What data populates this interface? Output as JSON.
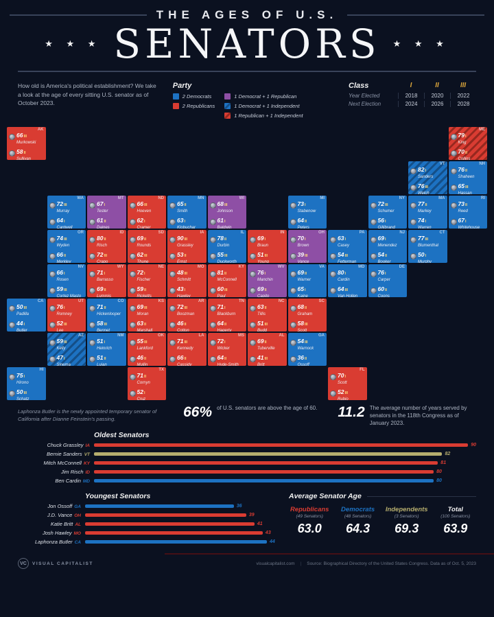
{
  "colors": {
    "background": "#0b1120",
    "democrat": "#1d72c2",
    "republican": "#d93c32",
    "mixed": "#8e4fa5",
    "independent": "#b5ad6e",
    "class_gold": "#ffd97a"
  },
  "header": {
    "kicker": "THE AGES OF U.S.",
    "title": "SENATORS",
    "stars": "★ ★ ★"
  },
  "intro": {
    "text": "How old is America's political establishment? We take a look at the age of every sitting U.S. senator as of October 2023."
  },
  "legend": {
    "title": "Party",
    "columns": [
      [
        {
          "label": "2 Democrats",
          "type": "dem"
        },
        {
          "label": "2 Republicans",
          "type": "rep"
        }
      ],
      [
        {
          "label": "1 Democrat + 1 Republican",
          "type": "mix"
        },
        {
          "label": "1 Democrat + 1 Independent",
          "type": "demind"
        },
        {
          "label": "1 Republican + 1 Independent",
          "type": "repind"
        }
      ]
    ]
  },
  "class_table": {
    "title": "Class",
    "columns": [
      "I",
      "II",
      "III"
    ],
    "rows": [
      {
        "label": "Year Elected",
        "values": [
          "2018",
          "2020",
          "2022"
        ]
      },
      {
        "label": "Next Election",
        "values": [
          "2024",
          "2026",
          "2028"
        ]
      }
    ]
  },
  "map": {
    "annotation": "Laphonza Butler is the newly appointed temporary senator of California after Dianne Feinstein's passing.",
    "states": [
      {
        "abbr": "WA",
        "party": "dem",
        "senators": [
          {
            "age": 72,
            "cls": "III",
            "name": "Murray"
          },
          {
            "age": 64,
            "cls": "I",
            "name": "Cantwell"
          }
        ]
      },
      {
        "abbr": "OR",
        "party": "dem",
        "senators": [
          {
            "age": 74,
            "cls": "III",
            "name": "Wyden"
          },
          {
            "age": 66,
            "cls": "II",
            "name": "Merkley"
          }
        ]
      },
      {
        "abbr": "CA",
        "party": "dem",
        "senators": [
          {
            "age": 50,
            "cls": "III",
            "name": "Padilla"
          },
          {
            "age": 44,
            "cls": "I",
            "name": "Butler"
          }
        ]
      },
      {
        "abbr": "NV",
        "party": "dem",
        "senators": [
          {
            "age": 66,
            "cls": "I",
            "name": "Rosen"
          },
          {
            "age": 59,
            "cls": "III",
            "name": "Cortez Masto"
          }
        ]
      },
      {
        "abbr": "ID",
        "party": "rep",
        "senators": [
          {
            "age": 80,
            "cls": "II",
            "name": "Risch"
          },
          {
            "age": 72,
            "cls": "III",
            "name": "Crapo"
          }
        ]
      },
      {
        "abbr": "MT",
        "party": "mix",
        "senators": [
          {
            "age": 67,
            "cls": "I",
            "name": "Tester"
          },
          {
            "age": 61,
            "cls": "II",
            "name": "Daines"
          }
        ]
      },
      {
        "abbr": "WY",
        "party": "rep",
        "senators": [
          {
            "age": 71,
            "cls": "I",
            "name": "Barrasso"
          },
          {
            "age": 69,
            "cls": "II",
            "name": "Lummis"
          }
        ]
      },
      {
        "abbr": "UT",
        "party": "rep",
        "senators": [
          {
            "age": 76,
            "cls": "I",
            "name": "Romney"
          },
          {
            "age": 52,
            "cls": "III",
            "name": "Lee"
          }
        ]
      },
      {
        "abbr": "CO",
        "party": "dem",
        "senators": [
          {
            "age": 71,
            "cls": "II",
            "name": "Hickenlooper"
          },
          {
            "age": 58,
            "cls": "III",
            "name": "Bennet"
          }
        ]
      },
      {
        "abbr": "AZ",
        "party": "demind",
        "senators": [
          {
            "age": 59,
            "cls": "III",
            "name": "Kelly"
          },
          {
            "age": 47,
            "cls": "I",
            "name": "Sinema"
          }
        ]
      },
      {
        "abbr": "NM",
        "party": "dem",
        "senators": [
          {
            "age": 51,
            "cls": "I",
            "name": "Heinrich"
          },
          {
            "age": 51,
            "cls": "II",
            "name": "Lujan"
          }
        ]
      },
      {
        "abbr": "AK",
        "party": "rep",
        "senators": [
          {
            "age": 66,
            "cls": "III",
            "name": "Murkowski"
          },
          {
            "age": 58,
            "cls": "II",
            "name": "Sullivan"
          }
        ]
      },
      {
        "abbr": "HI",
        "party": "dem",
        "senators": [
          {
            "age": 75,
            "cls": "I",
            "name": "Hirono"
          },
          {
            "age": 50,
            "cls": "III",
            "name": "Schatz"
          }
        ]
      },
      {
        "abbr": "ND",
        "party": "rep",
        "senators": [
          {
            "age": 66,
            "cls": "III",
            "name": "Hoeven"
          },
          {
            "age": 62,
            "cls": "I",
            "name": "Cramer"
          }
        ]
      },
      {
        "abbr": "SD",
        "party": "rep",
        "senators": [
          {
            "age": 69,
            "cls": "II",
            "name": "Rounds"
          },
          {
            "age": 62,
            "cls": "III",
            "name": "Thune"
          }
        ]
      },
      {
        "abbr": "NE",
        "party": "rep",
        "senators": [
          {
            "age": 72,
            "cls": "I",
            "name": "Fischer"
          },
          {
            "age": 59,
            "cls": "II",
            "name": "Ricketts"
          }
        ]
      },
      {
        "abbr": "KS",
        "party": "rep",
        "senators": [
          {
            "age": 69,
            "cls": "III",
            "name": "Moran"
          },
          {
            "age": 63,
            "cls": "II",
            "name": "Marshall"
          }
        ]
      },
      {
        "abbr": "OK",
        "party": "rep",
        "senators": [
          {
            "age": 55,
            "cls": "III",
            "name": "Lankford"
          },
          {
            "age": 46,
            "cls": "II",
            "name": "Mullin"
          }
        ]
      },
      {
        "abbr": "TX",
        "party": "rep",
        "senators": [
          {
            "age": 71,
            "cls": "II",
            "name": "Cornyn"
          },
          {
            "age": 52,
            "cls": "I",
            "name": "Cruz"
          }
        ]
      },
      {
        "abbr": "MN",
        "party": "dem",
        "senators": [
          {
            "age": 65,
            "cls": "II",
            "name": "Smith"
          },
          {
            "age": 63,
            "cls": "I",
            "name": "Klobuchar"
          }
        ]
      },
      {
        "abbr": "IA",
        "party": "rep",
        "senators": [
          {
            "age": 90,
            "cls": "III",
            "name": "Grassley"
          },
          {
            "age": 53,
            "cls": "II",
            "name": "Ernst"
          }
        ]
      },
      {
        "abbr": "MO",
        "party": "rep",
        "senators": [
          {
            "age": 48,
            "cls": "III",
            "name": "Schmitt"
          },
          {
            "age": 43,
            "cls": "I",
            "name": "Hawley"
          }
        ]
      },
      {
        "abbr": "AR",
        "party": "rep",
        "senators": [
          {
            "age": 72,
            "cls": "III",
            "name": "Boozman"
          },
          {
            "age": 46,
            "cls": "II",
            "name": "Cotton"
          }
        ]
      },
      {
        "abbr": "LA",
        "party": "rep",
        "senators": [
          {
            "age": 71,
            "cls": "III",
            "name": "Kennedy"
          },
          {
            "age": 66,
            "cls": "II",
            "name": "Cassidy"
          }
        ]
      },
      {
        "abbr": "WI",
        "party": "mix",
        "senators": [
          {
            "age": 68,
            "cls": "III",
            "name": "Johnson"
          },
          {
            "age": 61,
            "cls": "I",
            "name": "Baldwin"
          }
        ]
      },
      {
        "abbr": "IL",
        "party": "dem",
        "senators": [
          {
            "age": 78,
            "cls": "II",
            "name": "Durbin"
          },
          {
            "age": 55,
            "cls": "III",
            "name": "Duckworth"
          }
        ]
      },
      {
        "abbr": "MS",
        "party": "rep",
        "senators": [
          {
            "age": 72,
            "cls": "I",
            "name": "Wicker"
          },
          {
            "age": 64,
            "cls": "II",
            "name": "Hyde-Smith"
          }
        ]
      },
      {
        "abbr": "MI",
        "party": "dem",
        "senators": [
          {
            "age": 73,
            "cls": "I",
            "name": "Stabenow"
          },
          {
            "age": 64,
            "cls": "II",
            "name": "Peters"
          }
        ]
      },
      {
        "abbr": "IN",
        "party": "rep",
        "senators": [
          {
            "age": 69,
            "cls": "I",
            "name": "Braun"
          },
          {
            "age": 51,
            "cls": "III",
            "name": "Young"
          }
        ]
      },
      {
        "abbr": "OH",
        "party": "mix",
        "senators": [
          {
            "age": 70,
            "cls": "I",
            "name": "Brown"
          },
          {
            "age": 39,
            "cls": "III",
            "name": "Vance"
          }
        ]
      },
      {
        "abbr": "KY",
        "party": "rep",
        "senators": [
          {
            "age": 81,
            "cls": "II",
            "name": "McConnell"
          },
          {
            "age": 60,
            "cls": "III",
            "name": "Paul"
          }
        ]
      },
      {
        "abbr": "TN",
        "party": "rep",
        "senators": [
          {
            "age": 71,
            "cls": "I",
            "name": "Blackburn"
          },
          {
            "age": 64,
            "cls": "II",
            "name": "Hagerty"
          }
        ]
      },
      {
        "abbr": "AL",
        "party": "rep",
        "senators": [
          {
            "age": 69,
            "cls": "II",
            "name": "Tuberville"
          },
          {
            "age": 41,
            "cls": "III",
            "name": "Britt"
          }
        ]
      },
      {
        "abbr": "GA",
        "party": "dem",
        "senators": [
          {
            "age": 54,
            "cls": "III",
            "name": "Warnock"
          },
          {
            "age": 36,
            "cls": "II",
            "name": "Ossoff"
          }
        ]
      },
      {
        "abbr": "FL",
        "party": "rep",
        "senators": [
          {
            "age": 70,
            "cls": "I",
            "name": "Scott"
          },
          {
            "age": 52,
            "cls": "III",
            "name": "Rubio"
          }
        ]
      },
      {
        "abbr": "SC",
        "party": "rep",
        "senators": [
          {
            "age": 68,
            "cls": "II",
            "name": "Graham"
          },
          {
            "age": 58,
            "cls": "III",
            "name": "Scott"
          }
        ]
      },
      {
        "abbr": "NC",
        "party": "rep",
        "senators": [
          {
            "age": 63,
            "cls": "II",
            "name": "Tillis"
          },
          {
            "age": 51,
            "cls": "III",
            "name": "Budd"
          }
        ]
      },
      {
        "abbr": "VA",
        "party": "dem",
        "senators": [
          {
            "age": 69,
            "cls": "II",
            "name": "Warner"
          },
          {
            "age": 65,
            "cls": "I",
            "name": "Kaine"
          }
        ]
      },
      {
        "abbr": "WV",
        "party": "mix",
        "senators": [
          {
            "age": 76,
            "cls": "I",
            "name": "Manchin"
          },
          {
            "age": 69,
            "cls": "II",
            "name": "Capito"
          }
        ]
      },
      {
        "abbr": "PA",
        "party": "dem",
        "senators": [
          {
            "age": 63,
            "cls": "I",
            "name": "Casey"
          },
          {
            "age": 54,
            "cls": "III",
            "name": "Fetterman"
          }
        ]
      },
      {
        "abbr": "NY",
        "party": "dem",
        "senators": [
          {
            "age": 72,
            "cls": "III",
            "name": "Schumer"
          },
          {
            "age": 56,
            "cls": "I",
            "name": "Gillibrand"
          }
        ]
      },
      {
        "abbr": "VT",
        "party": "demind",
        "senators": [
          {
            "age": 82,
            "cls": "I",
            "name": "Sanders"
          },
          {
            "age": 76,
            "cls": "III",
            "name": "Welch"
          }
        ]
      },
      {
        "abbr": "NH",
        "party": "dem",
        "senators": [
          {
            "age": 76,
            "cls": "II",
            "name": "Shaheen"
          },
          {
            "age": 65,
            "cls": "III",
            "name": "Hassan"
          }
        ]
      },
      {
        "abbr": "ME",
        "party": "repind",
        "senators": [
          {
            "age": 79,
            "cls": "I",
            "name": "King"
          },
          {
            "age": 70,
            "cls": "II",
            "name": "Collins"
          }
        ]
      },
      {
        "abbr": "MA",
        "party": "dem",
        "senators": [
          {
            "age": 77,
            "cls": "II",
            "name": "Markey"
          },
          {
            "age": 74,
            "cls": "I",
            "name": "Warren"
          }
        ]
      },
      {
        "abbr": "RI",
        "party": "dem",
        "senators": [
          {
            "age": 73,
            "cls": "II",
            "name": "Reed"
          },
          {
            "age": 67,
            "cls": "I",
            "name": "Whitehouse"
          }
        ]
      },
      {
        "abbr": "CT",
        "party": "dem",
        "senators": [
          {
            "age": 77,
            "cls": "III",
            "name": "Blumenthal"
          },
          {
            "age": 50,
            "cls": "I",
            "name": "Murphy"
          }
        ]
      },
      {
        "abbr": "NJ",
        "party": "dem",
        "senators": [
          {
            "age": 69,
            "cls": "I",
            "name": "Menendez"
          },
          {
            "age": 54,
            "cls": "II",
            "name": "Booker"
          }
        ]
      },
      {
        "abbr": "MD",
        "party": "dem",
        "senators": [
          {
            "age": 80,
            "cls": "I",
            "name": "Cardin"
          },
          {
            "age": 64,
            "cls": "III",
            "name": "Van Hollen"
          }
        ]
      },
      {
        "abbr": "DE",
        "party": "dem",
        "senators": [
          {
            "age": 76,
            "cls": "I",
            "name": "Carper"
          },
          {
            "age": 60,
            "cls": "II",
            "name": "Coons"
          }
        ]
      }
    ]
  },
  "stats": [
    {
      "value": "66%",
      "text": "of U.S. senators are above the age of 60."
    },
    {
      "value": "11.2",
      "text": "The average number of years served by senators in the 118th Congress as of January 2023."
    }
  ],
  "chart_data": [
    {
      "type": "bar",
      "title": "Oldest Senators",
      "orientation": "horizontal",
      "xlim": [
        0,
        90
      ],
      "rows": [
        {
          "name": "Chuck Grassley",
          "state": "IA",
          "party": "republican",
          "value": 90
        },
        {
          "name": "Bernie Sanders",
          "state": "VT",
          "party": "independent",
          "value": 82
        },
        {
          "name": "Mitch McConnell",
          "state": "KY",
          "party": "republican",
          "value": 81
        },
        {
          "name": "Jim Risch",
          "state": "ID",
          "party": "republican",
          "value": 80
        },
        {
          "name": "Ben Cardin",
          "state": "MD",
          "party": "democrat",
          "value": 80
        }
      ]
    },
    {
      "type": "bar",
      "title": "Youngest Senators",
      "orientation": "horizontal",
      "xlim": [
        0,
        46
      ],
      "rows": [
        {
          "name": "Jon Ossoff",
          "state": "GA",
          "party": "democrat",
          "value": 36
        },
        {
          "name": "J.D. Vance",
          "state": "OH",
          "party": "republican",
          "value": 39
        },
        {
          "name": "Katie Britt",
          "state": "AL",
          "party": "republican",
          "value": 41
        },
        {
          "name": "Josh Hawley",
          "state": "MO",
          "party": "republican",
          "value": 43
        },
        {
          "name": "Laphonza Butler",
          "state": "CA",
          "party": "democrat",
          "value": 44
        }
      ]
    },
    {
      "type": "table",
      "title": "Average Senator Age",
      "columns": [
        {
          "label": "Republicans",
          "sub": "(49 Senators)",
          "party": "republican",
          "value": "63.0"
        },
        {
          "label": "Democrats",
          "sub": "(48 Senators)",
          "party": "democrat",
          "value": "64.3"
        },
        {
          "label": "Independents",
          "sub": "(3 Senators)",
          "party": "independent",
          "value": "69.3"
        },
        {
          "label": "Total",
          "sub": "(100 Senators)",
          "party": "total",
          "value": "63.9"
        }
      ]
    }
  ],
  "footer": {
    "logo_text": "VISUAL CAPITALIST",
    "logo_mark": "VC",
    "site": "visualcapitalist.com",
    "separator": "|",
    "source": "Source: Biographical Directory of the United States Congress. Data as of Oct. 5, 2023"
  }
}
